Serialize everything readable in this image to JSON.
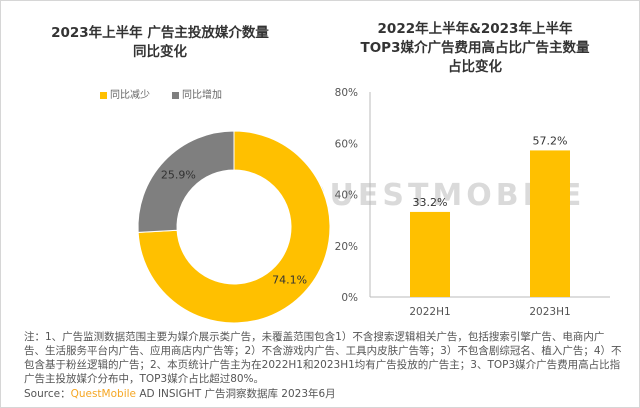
{
  "chart_data": [
    {
      "type": "pie",
      "donut": true,
      "title": "2023年上半年 广告主投放媒介数量同比变化",
      "title_lines": [
        "2023年上半年 广告主投放媒介数量",
        "同比变化"
      ],
      "legend_placement": "top",
      "slices": [
        {
          "name": "同比减少",
          "value": 74.1,
          "label": "74.1%",
          "color": "#FFC000"
        },
        {
          "name": "同比增加",
          "value": 25.9,
          "label": "25.9%",
          "color": "#7F7F7F"
        }
      ]
    },
    {
      "type": "bar",
      "title": "2022年上半年&2023年上半年TOP3媒介广告费用高占比广告主数量占比变化",
      "title_lines": [
        "2022年上半年&2023年上半年",
        "TOP3媒介广告费用高占比广告主数量",
        "占比变化"
      ],
      "categories": [
        "2022H1",
        "2023H1"
      ],
      "values": [
        33.2,
        57.2
      ],
      "data_labels": [
        "33.2%",
        "57.2%"
      ],
      "ylim": [
        0,
        80
      ],
      "yticks": [
        "0%",
        "20%",
        "40%",
        "60%",
        "80%"
      ],
      "grid": false,
      "color": "#FFC000"
    }
  ],
  "watermark": "QUESTMOBILE",
  "note": "注：1、广告监测数据范围主要为媒介展示类广告，未覆盖范围包含1）不含搜索逻辑相关广告，包括搜索引擎广告、电商内广告、生活服务平台内广告、应用商店内广告等；2）不含游戏内广告、工具内皮肤广告等；3）不包含剧综冠名、植入广告；4）不包含基于粉丝逻辑的广告；2、本页统计广告主为在2022H1和2023H1均有广告投放的广告主；3、TOP3媒介广告费用高占比指广告主投放媒介分布中，TOP3媒介占比超过80%。",
  "source": {
    "label": "Source：",
    "brand": "QuestMobile",
    "rest": " AD INSIGHT 广告洞察数据库 2023年6月"
  }
}
